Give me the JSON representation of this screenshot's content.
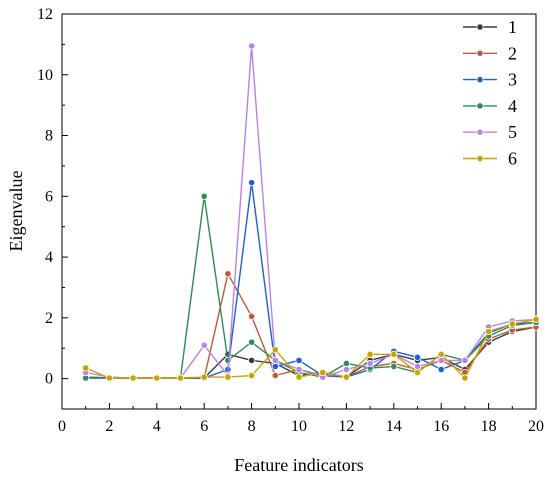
{
  "chart_data": {
    "type": "line",
    "title": "",
    "xlabel": "Feature indicators",
    "ylabel": "Eigenvalue",
    "xlim": [
      0,
      20
    ],
    "ylim": [
      -1,
      12
    ],
    "xticks": [
      0,
      2,
      4,
      6,
      8,
      10,
      12,
      14,
      16,
      18,
      20
    ],
    "yticks": [
      0,
      2,
      4,
      6,
      8,
      10,
      12
    ],
    "grid": false,
    "legend_position": "top-right",
    "x": [
      1,
      2,
      3,
      4,
      5,
      6,
      7,
      8,
      9,
      10,
      11,
      12,
      13,
      14,
      15,
      16,
      17,
      18,
      19,
      20
    ],
    "series": [
      {
        "name": "1",
        "color": "#3a3a3a",
        "values": [
          0.05,
          0.02,
          0.02,
          0.02,
          0.02,
          0.02,
          0.8,
          0.6,
          0.5,
          0.1,
          0.2,
          0.05,
          0.6,
          0.8,
          0.6,
          0.7,
          0.3,
          1.2,
          1.55,
          1.7
        ]
      },
      {
        "name": "2",
        "color": "#c0593b",
        "values": [
          0.05,
          0.02,
          0.02,
          0.02,
          0.02,
          0.02,
          3.45,
          2.05,
          0.1,
          0.3,
          0.1,
          0.05,
          0.4,
          0.5,
          0.3,
          0.6,
          0.2,
          1.3,
          1.6,
          1.7
        ]
      },
      {
        "name": "3",
        "color": "#1f5fd6",
        "values": [
          0.02,
          0.02,
          0.02,
          0.02,
          0.02,
          0.02,
          0.3,
          6.45,
          0.4,
          0.6,
          0.1,
          0.05,
          0.3,
          0.9,
          0.7,
          0.3,
          0.6,
          1.5,
          1.8,
          1.85
        ]
      },
      {
        "name": "4",
        "color": "#2e8b57",
        "values": [
          0.02,
          0.02,
          0.02,
          0.02,
          0.02,
          6.0,
          0.6,
          1.2,
          0.6,
          0.2,
          0.05,
          0.5,
          0.35,
          0.4,
          0.2,
          0.8,
          0.6,
          1.4,
          1.75,
          1.85
        ]
      },
      {
        "name": "5",
        "color": "#b983e6",
        "values": [
          0.2,
          0.05,
          0.02,
          0.02,
          0.02,
          1.1,
          0.1,
          10.95,
          0.6,
          0.3,
          0.05,
          0.3,
          0.5,
          0.8,
          0.4,
          0.6,
          0.6,
          1.7,
          1.9,
          1.95
        ]
      },
      {
        "name": "6",
        "color": "#c9a400",
        "values": [
          0.35,
          0.02,
          0.02,
          0.02,
          0.02,
          0.05,
          0.05,
          0.1,
          0.95,
          0.05,
          0.2,
          0.05,
          0.8,
          0.8,
          0.2,
          0.8,
          0.02,
          1.55,
          1.8,
          1.95
        ]
      }
    ]
  }
}
